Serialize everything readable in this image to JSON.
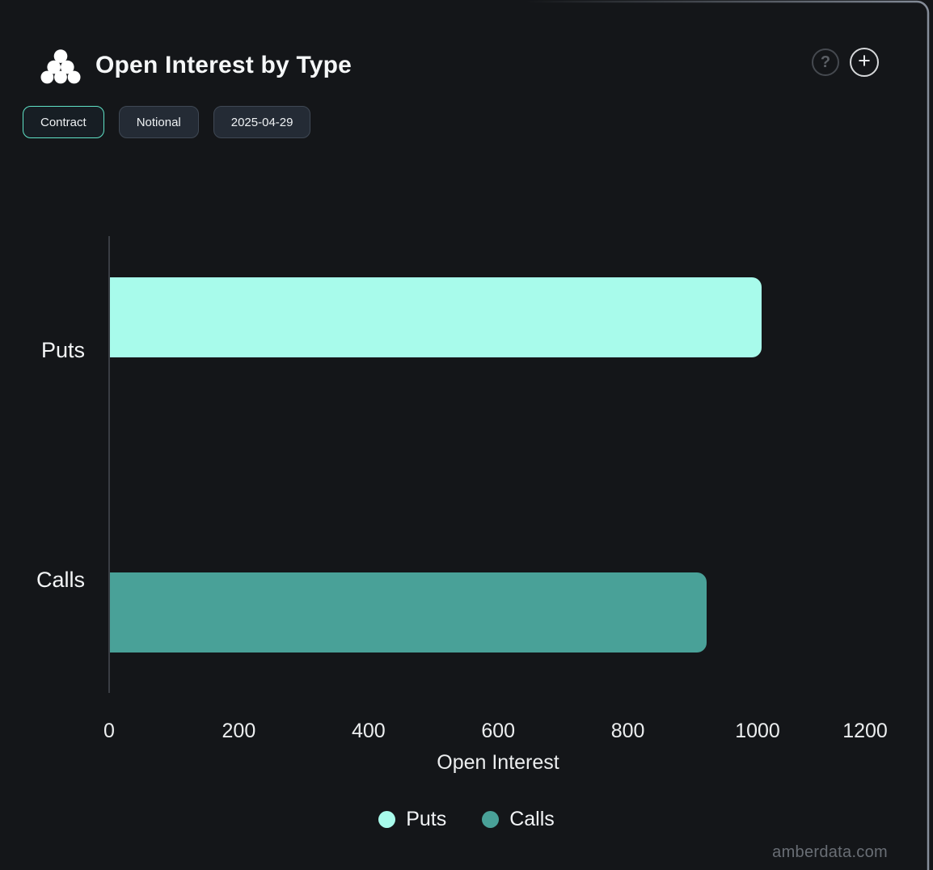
{
  "header": {
    "title": "Open Interest by Type",
    "logo_icon": "dot-pyramid-logo",
    "actions": {
      "help_glyph": "?",
      "add_glyph": "+"
    }
  },
  "controls": {
    "buttons": [
      {
        "label": "Contract",
        "active": true
      },
      {
        "label": "Notional",
        "active": false
      },
      {
        "label": "2025-04-29",
        "active": false
      }
    ]
  },
  "chart_data": {
    "type": "bar",
    "orientation": "horizontal",
    "title": "Open Interest by Type",
    "categories": [
      "Puts",
      "Calls"
    ],
    "series": [
      {
        "name": "Puts",
        "color": "#a8fbeb",
        "values": [
          1005,
          0
        ]
      },
      {
        "name": "Calls",
        "color": "#49a198",
        "values": [
          0,
          920
        ]
      }
    ],
    "xlabel": "Open Interest",
    "xlim": [
      0,
      1200
    ],
    "xticks": [
      0,
      200,
      400,
      600,
      800,
      1000,
      1200
    ],
    "legend": [
      "Puts",
      "Calls"
    ],
    "legend_position": "bottom",
    "grid": false
  },
  "watermark": "amberdata.com",
  "colors": {
    "background": "#141619",
    "puts": "#a8fbeb",
    "calls": "#49a198",
    "active_button_border": "#5fe2c6",
    "axis_line": "#3a3e44",
    "card_border": "#8b93a0"
  }
}
